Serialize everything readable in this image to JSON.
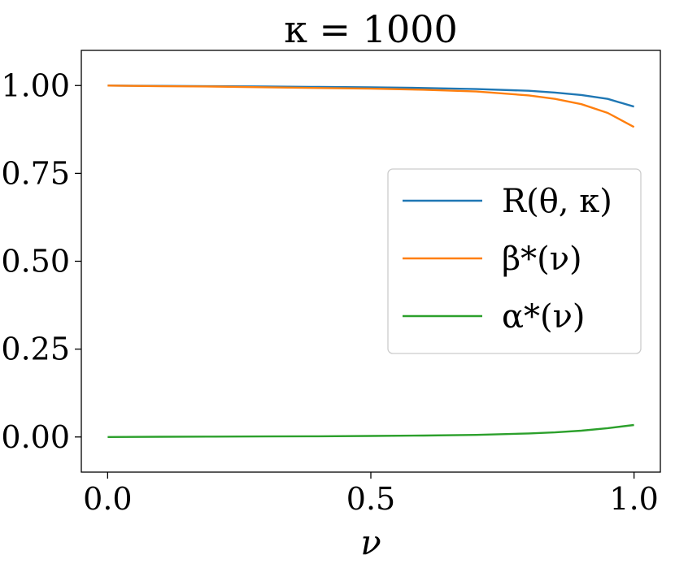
{
  "chart_data": {
    "type": "line",
    "title": "κ = 1000",
    "xlabel": "ν",
    "ylabel": "",
    "xlim": [
      -0.05,
      1.05
    ],
    "ylim": [
      -0.1,
      1.1
    ],
    "xticks": [
      0.0,
      0.5,
      1.0
    ],
    "xtick_labels": [
      "0.0",
      "0.5",
      "1.0"
    ],
    "yticks": [
      0.0,
      0.25,
      0.5,
      0.75,
      1.0
    ],
    "ytick_labels": [
      "0.00",
      "0.25",
      "0.50",
      "0.75",
      "1.00"
    ],
    "grid": false,
    "legend_position": "center-right",
    "x": [
      0.0,
      0.1,
      0.2,
      0.3,
      0.4,
      0.5,
      0.6,
      0.7,
      0.8,
      0.85,
      0.9,
      0.95,
      1.0
    ],
    "series": [
      {
        "name": "R(θ, κ)",
        "color": "#1f77b4",
        "values": [
          1.0,
          0.999,
          0.998,
          0.997,
          0.996,
          0.995,
          0.993,
          0.99,
          0.985,
          0.98,
          0.973,
          0.962,
          0.94
        ]
      },
      {
        "name": "β*(ν)",
        "color": "#ff7f0e",
        "values": [
          1.0,
          0.998,
          0.997,
          0.995,
          0.993,
          0.991,
          0.988,
          0.983,
          0.972,
          0.962,
          0.947,
          0.922,
          0.882
        ]
      },
      {
        "name": "α*(ν)",
        "color": "#2ca02c",
        "values": [
          0.0,
          0.0005,
          0.001,
          0.0015,
          0.002,
          0.003,
          0.004,
          0.006,
          0.01,
          0.013,
          0.018,
          0.025,
          0.034
        ]
      }
    ]
  }
}
